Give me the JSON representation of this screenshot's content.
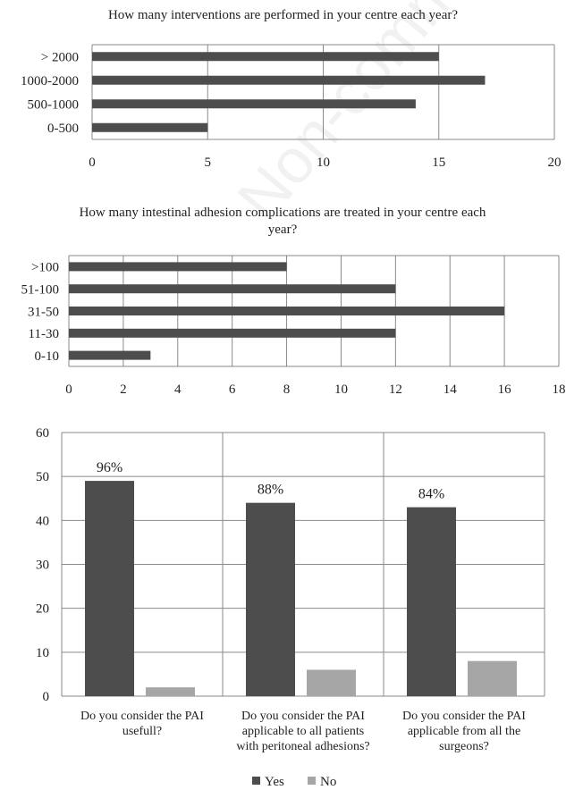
{
  "watermark": "Non-commer",
  "chart_data": [
    {
      "type": "bar",
      "orientation": "horizontal",
      "title": "How many interventions are performed in your centre each year?",
      "categories": [
        "> 2000",
        "1000-2000",
        "500-1000",
        "0-500"
      ],
      "values": [
        15,
        17,
        14,
        5
      ],
      "xlim": [
        0,
        20
      ],
      "xticks": [
        0,
        5,
        10,
        15,
        20
      ],
      "grid": true,
      "bar_color": "#4d4d4d"
    },
    {
      "type": "bar",
      "orientation": "horizontal",
      "title": "How many intestinal adhesion complications are treated in your centre each year?",
      "categories": [
        ">100",
        "51-100",
        "31-50",
        "11-30",
        "0-10"
      ],
      "values": [
        8,
        12,
        16,
        12,
        3
      ],
      "xlim": [
        0,
        18
      ],
      "xticks": [
        0,
        2,
        4,
        6,
        8,
        10,
        12,
        14,
        16,
        18
      ],
      "grid": true,
      "bar_color": "#4d4d4d"
    },
    {
      "type": "bar",
      "orientation": "vertical",
      "categories": [
        [
          "Do you consider the PAI",
          "usefull?"
        ],
        [
          "Do you consider the PAI",
          "applicable to all patients",
          "with peritoneal adhesions?"
        ],
        [
          "Do you consider the PAI",
          "applicable from all the",
          "surgeons?"
        ]
      ],
      "series": [
        {
          "name": "Yes",
          "values": [
            49,
            44,
            43
          ],
          "color": "#4d4d4d"
        },
        {
          "name": "No",
          "values": [
            2,
            6,
            8
          ],
          "color": "#a6a6a6"
        }
      ],
      "data_labels": [
        "96%",
        "88%",
        "84%"
      ],
      "ylim": [
        0,
        60
      ],
      "yticks": [
        0,
        10,
        20,
        30,
        40,
        50,
        60
      ],
      "grid": true,
      "legend": "bottom"
    }
  ]
}
